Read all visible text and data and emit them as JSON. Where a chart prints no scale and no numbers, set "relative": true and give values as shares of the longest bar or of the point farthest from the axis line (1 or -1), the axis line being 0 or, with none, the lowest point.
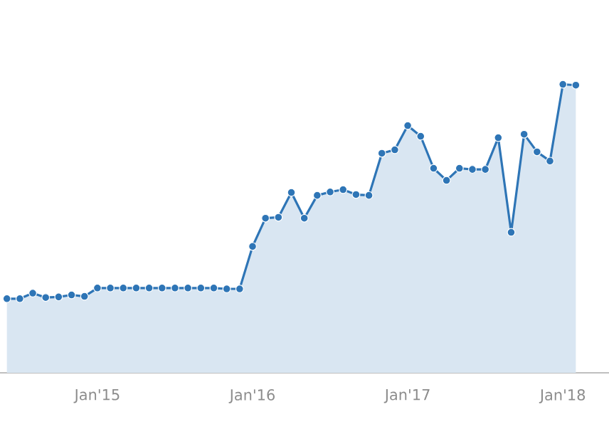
{
  "chart_data": {
    "type": "area",
    "relative": true,
    "marker": "circle",
    "x": [
      "2014-06",
      "2014-07",
      "2014-08",
      "2014-09",
      "2014-10",
      "2014-11",
      "2014-12",
      "2015-01",
      "2015-02",
      "2015-03",
      "2015-04",
      "2015-05",
      "2015-06",
      "2015-07",
      "2015-08",
      "2015-09",
      "2015-10",
      "2015-11",
      "2015-12",
      "2016-01",
      "2016-02",
      "2016-03",
      "2016-04",
      "2016-05",
      "2016-06",
      "2016-07",
      "2016-08",
      "2016-09",
      "2016-10",
      "2016-11",
      "2016-12",
      "2017-01",
      "2017-02",
      "2017-03",
      "2017-04",
      "2017-05",
      "2017-06",
      "2017-07",
      "2017-08",
      "2017-09",
      "2017-10",
      "2017-11",
      "2017-12",
      "2018-01",
      "2018-02"
    ],
    "series": [
      {
        "color": "#2e75b6",
        "values": [
          0.257,
          0.257,
          0.276,
          0.261,
          0.263,
          0.27,
          0.265,
          0.294,
          0.294,
          0.294,
          0.294,
          0.294,
          0.294,
          0.294,
          0.294,
          0.294,
          0.294,
          0.291,
          0.291,
          0.438,
          0.536,
          0.539,
          0.625,
          0.536,
          0.615,
          0.627,
          0.635,
          0.618,
          0.615,
          0.761,
          0.773,
          0.857,
          0.82,
          0.709,
          0.667,
          0.709,
          0.705,
          0.705,
          0.815,
          0.487,
          0.827,
          0.766,
          0.734,
          1,
          0.997
        ]
      }
    ],
    "xlim": [
      "2014-05-15",
      "2018-04-18"
    ],
    "xticks": [
      {
        "value": "2015-01",
        "label": "Jan'15"
      },
      {
        "value": "2016-01",
        "label": "Jan'16"
      },
      {
        "value": "2017-01",
        "label": "Jan'17"
      },
      {
        "value": "2018-01",
        "label": "Jan'18"
      }
    ]
  }
}
